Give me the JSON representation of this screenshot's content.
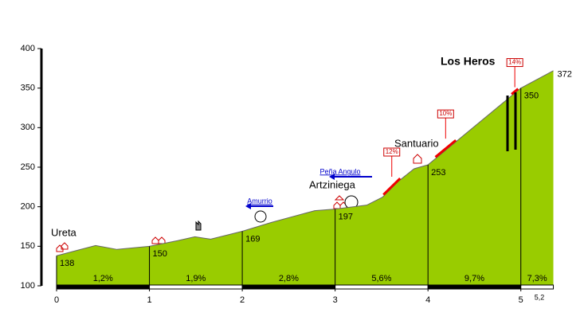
{
  "chart_data": {
    "type": "area",
    "title": "Los Heros",
    "x": [
      0,
      0.42,
      0.65,
      1,
      1.3,
      1.49,
      1.66,
      2,
      2.31,
      2.78,
      3,
      3.34,
      3.51,
      3.68,
      3.85,
      4,
      5,
      5.35
    ],
    "values": [
      138,
      151,
      146,
      150,
      157,
      162,
      159,
      169,
      180,
      195,
      197,
      202,
      212,
      232,
      248,
      253,
      350,
      372
    ],
    "color": "#99cc00",
    "xlim": [
      0,
      5.5
    ],
    "ylim": [
      100,
      400
    ],
    "yticks": [
      100,
      150,
      200,
      250,
      300,
      350,
      400
    ],
    "xticks": [
      0,
      1,
      2,
      3,
      4,
      5,
      {
        "value": 5.2,
        "label": "5,2"
      }
    ],
    "markers": [
      {
        "x": 0,
        "value": 138
      },
      {
        "x": 1,
        "value": 150
      },
      {
        "x": 2,
        "value": 169
      },
      {
        "x": 3,
        "value": 197
      },
      {
        "x": 4,
        "value": 253
      },
      {
        "x": 5,
        "value": 350
      },
      {
        "x": 5.35,
        "value": 372
      }
    ],
    "segments": [
      {
        "start": 0,
        "end": 1,
        "value": 1.2,
        "label": "1,2%"
      },
      {
        "start": 1,
        "end": 2,
        "value": 1.9,
        "label": "1,9%"
      },
      {
        "start": 2,
        "end": 3,
        "value": 2.8,
        "label": "2,8%"
      },
      {
        "start": 3,
        "end": 4,
        "value": 5.6,
        "label": "5,6%"
      },
      {
        "start": 4,
        "end": 5,
        "value": 9.7,
        "label": "9,7%"
      },
      {
        "start": 5,
        "end": 5.35,
        "value": 7.3,
        "label": "7,3%"
      }
    ],
    "steep": [
      {
        "from": 3.52,
        "to": 3.7,
        "value": 12,
        "label": "12%"
      },
      {
        "from": 4.08,
        "to": 4.3,
        "value": 10,
        "label": "10%"
      },
      {
        "from": 4.9,
        "to": 4.97,
        "value": 14,
        "label": "14%"
      }
    ],
    "places": [
      "Ureta",
      "Artziniega",
      "Santuario"
    ],
    "directions": [
      "Amurrio",
      "Peña Angulo"
    ]
  }
}
